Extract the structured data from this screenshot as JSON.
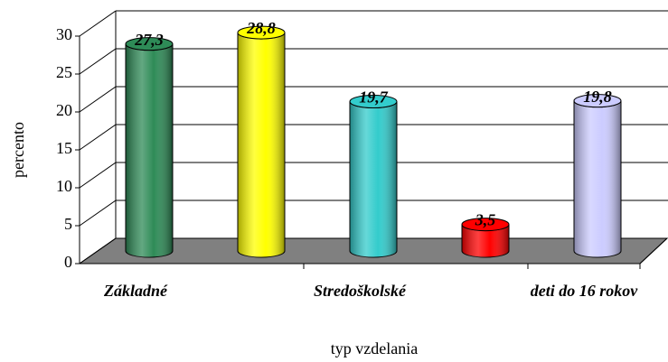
{
  "chart_data": {
    "type": "bar3d",
    "categories": [
      "Základné",
      null,
      "Stredoškolské",
      null,
      "deti do 16 rokov"
    ],
    "values": [
      27.3,
      28.8,
      19.7,
      3.5,
      19.8
    ],
    "value_labels": [
      "27,3",
      "28,8",
      "19,7",
      "3,5",
      "19,8"
    ],
    "colors": [
      "#2e8b57",
      "#ffff00",
      "#33cccc",
      "#ff0000",
      "#ccccff"
    ],
    "ylim": [
      0,
      30
    ],
    "yticks": [
      0,
      5,
      10,
      15,
      20,
      25,
      30
    ],
    "grid": true,
    "y_label": "percento",
    "x_label": "typ vzdelania"
  }
}
